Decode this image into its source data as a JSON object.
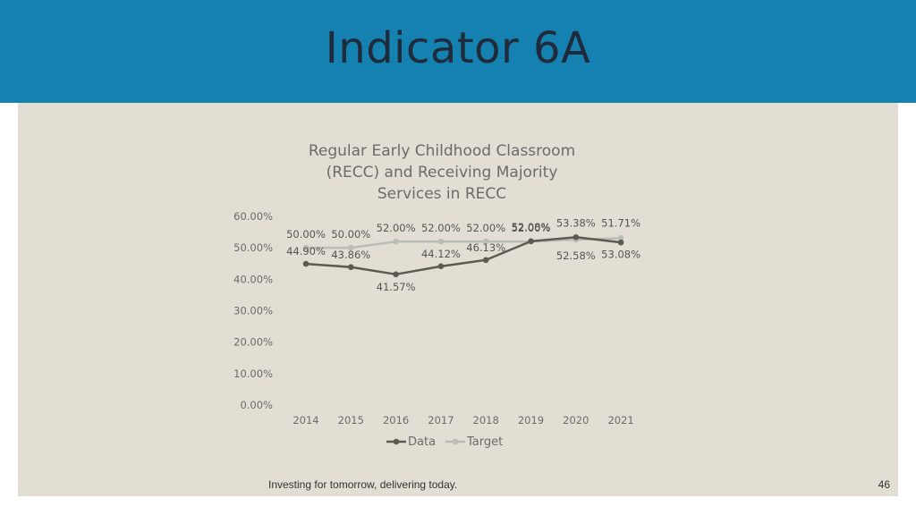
{
  "slide": {
    "title": "Indicator 6A",
    "footer": "Investing for tomorrow, delivering today.",
    "page_number": "46"
  },
  "colors": {
    "header_bg": "#1581b0",
    "content_bg": "#e2ded3",
    "data_series": "#5b5b52",
    "target_series": "#bcbcb6"
  },
  "chart_data": {
    "type": "line",
    "title": [
      "Regular Early Childhood Classroom",
      "(RECC) and Receiving Majority",
      "Services in RECC"
    ],
    "x": [
      "2014",
      "2015",
      "2016",
      "2017",
      "2018",
      "2019",
      "2020",
      "2021"
    ],
    "yticks": [
      "0.00%",
      "10.00%",
      "20.00%",
      "30.00%",
      "40.00%",
      "50.00%",
      "60.00%"
    ],
    "ylim": [
      0,
      60
    ],
    "grid": false,
    "legend_position": "bottom",
    "series": [
      {
        "name": "Data",
        "values": [
          44.9,
          43.86,
          41.57,
          44.12,
          46.13,
          52.08,
          53.38,
          51.71
        ],
        "labels": [
          "44.90%",
          "43.86%",
          "41.57%",
          "44.12%",
          "46.13%",
          "52.08%",
          "53.38%",
          "51.71%"
        ]
      },
      {
        "name": "Target",
        "values": [
          50.0,
          50.0,
          52.0,
          52.0,
          52.0,
          52.0,
          52.58,
          53.08
        ],
        "labels": [
          "50.00%",
          "50.00%",
          "52.00%",
          "52.00%",
          "52.00%",
          "52.00%",
          "52.58%",
          "53.08%"
        ]
      }
    ]
  }
}
